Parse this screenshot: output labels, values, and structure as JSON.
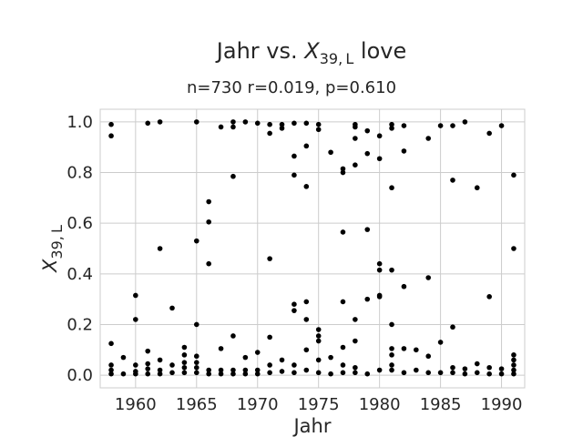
{
  "chart_data": {
    "type": "scatter",
    "title": "Jahr vs. X_{39,L} love",
    "title_parts": {
      "prefix": "Jahr vs. ",
      "var": "X",
      "sub": "39, L",
      "suffix": " love"
    },
    "subtitle": "n=730 r=0.019, p=0.610",
    "xlabel": "Jahr",
    "ylabel": "X_{39,L}",
    "ylabel_parts": {
      "var": "X",
      "sub": "39, L"
    },
    "xlim": [
      1957.1,
      1991.9
    ],
    "ylim": [
      -0.05,
      1.05
    ],
    "x_ticks": [
      1960,
      1965,
      1970,
      1975,
      1980,
      1985,
      1990
    ],
    "x_tick_labels": [
      "1960",
      "1965",
      "1970",
      "1975",
      "1980",
      "1985",
      "1990"
    ],
    "y_ticks": [
      0.0,
      0.2,
      0.4,
      0.6,
      0.8,
      1.0
    ],
    "y_tick_labels": [
      "0.0",
      "0.2",
      "0.4",
      "0.6",
      "0.8",
      "1.0"
    ],
    "grid": true,
    "point_color": "#000000",
    "grid_color": "#cccccc",
    "points": [
      [
        1958,
        0.99
      ],
      [
        1958,
        0.945
      ],
      [
        1958,
        0.125
      ],
      [
        1958,
        0.04
      ],
      [
        1958,
        0.02
      ],
      [
        1958,
        0.005
      ],
      [
        1959,
        0.07
      ],
      [
        1959,
        0.005
      ],
      [
        1960,
        0.315
      ],
      [
        1960,
        0.22
      ],
      [
        1960,
        0.04
      ],
      [
        1960,
        0.015
      ],
      [
        1960,
        0.005
      ],
      [
        1961,
        0.995
      ],
      [
        1961,
        0.095
      ],
      [
        1961,
        0.045
      ],
      [
        1961,
        0.025
      ],
      [
        1961,
        0.005
      ],
      [
        1962,
        1.0
      ],
      [
        1962,
        0.5
      ],
      [
        1962,
        0.06
      ],
      [
        1962,
        0.02
      ],
      [
        1962,
        0.005
      ],
      [
        1963,
        0.265
      ],
      [
        1963,
        0.04
      ],
      [
        1963,
        0.01
      ],
      [
        1964,
        0.11
      ],
      [
        1964,
        0.08
      ],
      [
        1964,
        0.05
      ],
      [
        1964,
        0.03
      ],
      [
        1964,
        0.01
      ],
      [
        1965,
        1.0
      ],
      [
        1965,
        0.53
      ],
      [
        1965,
        0.2
      ],
      [
        1965,
        0.075
      ],
      [
        1965,
        0.05
      ],
      [
        1965,
        0.03
      ],
      [
        1965,
        0.01
      ],
      [
        1966,
        0.685
      ],
      [
        1966,
        0.605
      ],
      [
        1966,
        0.44
      ],
      [
        1966,
        0.02
      ],
      [
        1966,
        0.005
      ],
      [
        1967,
        0.98
      ],
      [
        1967,
        0.105
      ],
      [
        1967,
        0.02
      ],
      [
        1967,
        0.005
      ],
      [
        1968,
        1.0
      ],
      [
        1968,
        0.98
      ],
      [
        1968,
        0.785
      ],
      [
        1968,
        0.155
      ],
      [
        1968,
        0.02
      ],
      [
        1968,
        0.005
      ],
      [
        1969,
        1.0
      ],
      [
        1969,
        0.07
      ],
      [
        1969,
        0.02
      ],
      [
        1969,
        0.005
      ],
      [
        1970,
        0.995
      ],
      [
        1970,
        0.09
      ],
      [
        1970,
        0.02
      ],
      [
        1970,
        0.005
      ],
      [
        1971,
        0.99
      ],
      [
        1971,
        0.955
      ],
      [
        1971,
        0.46
      ],
      [
        1971,
        0.15
      ],
      [
        1971,
        0.04
      ],
      [
        1971,
        0.01
      ],
      [
        1972,
        0.99
      ],
      [
        1972,
        0.975
      ],
      [
        1972,
        0.06
      ],
      [
        1972,
        0.015
      ],
      [
        1973,
        0.995
      ],
      [
        1973,
        0.865
      ],
      [
        1973,
        0.79
      ],
      [
        1973,
        0.28
      ],
      [
        1973,
        0.255
      ],
      [
        1973,
        0.04
      ],
      [
        1973,
        0.01
      ],
      [
        1974,
        0.995
      ],
      [
        1974,
        0.905
      ],
      [
        1974,
        0.745
      ],
      [
        1974,
        0.29
      ],
      [
        1974,
        0.22
      ],
      [
        1974,
        0.1
      ],
      [
        1974,
        0.02
      ],
      [
        1975,
        0.99
      ],
      [
        1975,
        0.97
      ],
      [
        1975,
        0.18
      ],
      [
        1975,
        0.155
      ],
      [
        1975,
        0.135
      ],
      [
        1975,
        0.06
      ],
      [
        1975,
        0.01
      ],
      [
        1976,
        0.88
      ],
      [
        1976,
        0.07
      ],
      [
        1976,
        0.005
      ],
      [
        1977,
        0.815
      ],
      [
        1977,
        0.8
      ],
      [
        1977,
        0.565
      ],
      [
        1977,
        0.29
      ],
      [
        1977,
        0.11
      ],
      [
        1977,
        0.04
      ],
      [
        1977,
        0.01
      ],
      [
        1978,
        0.99
      ],
      [
        1978,
        0.98
      ],
      [
        1978,
        0.935
      ],
      [
        1978,
        0.83
      ],
      [
        1978,
        0.22
      ],
      [
        1978,
        0.135
      ],
      [
        1978,
        0.03
      ],
      [
        1978,
        0.01
      ],
      [
        1979,
        0.965
      ],
      [
        1979,
        0.875
      ],
      [
        1979,
        0.575
      ],
      [
        1979,
        0.3
      ],
      [
        1979,
        0.005
      ],
      [
        1980,
        0.945
      ],
      [
        1980,
        0.855
      ],
      [
        1980,
        0.44
      ],
      [
        1980,
        0.415
      ],
      [
        1980,
        0.315
      ],
      [
        1980,
        0.31
      ],
      [
        1980,
        0.02
      ],
      [
        1981,
        0.99
      ],
      [
        1981,
        0.975
      ],
      [
        1981,
        0.74
      ],
      [
        1981,
        0.415
      ],
      [
        1981,
        0.2
      ],
      [
        1981,
        0.105
      ],
      [
        1981,
        0.08
      ],
      [
        1981,
        0.04
      ],
      [
        1981,
        0.02
      ],
      [
        1982,
        0.985
      ],
      [
        1982,
        0.885
      ],
      [
        1982,
        0.35
      ],
      [
        1982,
        0.105
      ],
      [
        1982,
        0.01
      ],
      [
        1983,
        0.1
      ],
      [
        1983,
        0.02
      ],
      [
        1984,
        0.935
      ],
      [
        1984,
        0.385
      ],
      [
        1984,
        0.075
      ],
      [
        1984,
        0.01
      ],
      [
        1985,
        0.985
      ],
      [
        1985,
        0.13
      ],
      [
        1985,
        0.01
      ],
      [
        1986,
        0.985
      ],
      [
        1986,
        0.77
      ],
      [
        1986,
        0.19
      ],
      [
        1986,
        0.03
      ],
      [
        1986,
        0.01
      ],
      [
        1987,
        1.0
      ],
      [
        1987,
        0.025
      ],
      [
        1987,
        0.005
      ],
      [
        1988,
        0.74
      ],
      [
        1988,
        0.045
      ],
      [
        1988,
        0.01
      ],
      [
        1989,
        0.955
      ],
      [
        1989,
        0.31
      ],
      [
        1989,
        0.03
      ],
      [
        1989,
        0.005
      ],
      [
        1990,
        0.985
      ],
      [
        1990,
        0.025
      ],
      [
        1990,
        0.005
      ],
      [
        1991,
        0.79
      ],
      [
        1991,
        0.5
      ],
      [
        1991,
        0.08
      ],
      [
        1991,
        0.06
      ],
      [
        1991,
        0.04
      ],
      [
        1991,
        0.02
      ],
      [
        1991,
        0.005
      ]
    ]
  }
}
